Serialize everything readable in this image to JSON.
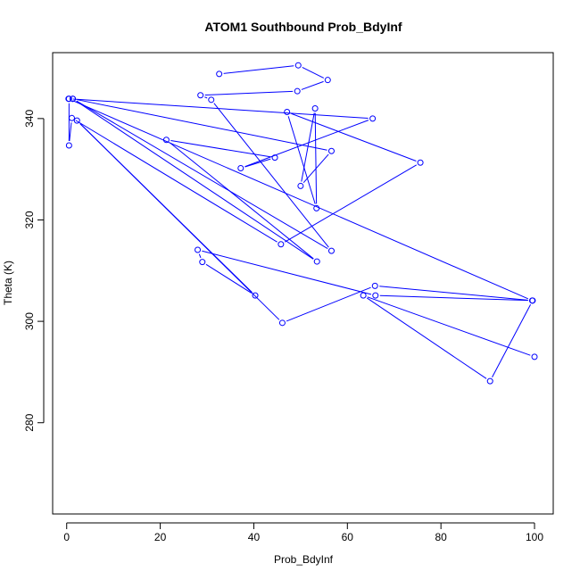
{
  "chart_data": {
    "type": "line",
    "title": "ATOM1 Southbound Prob_BdyInf",
    "xlabel": "Prob_BdyInf",
    "ylabel": "Theta (K)",
    "xlim": [
      -3,
      104
    ],
    "ylim": [
      262,
      353
    ],
    "x_ticks": [
      0,
      20,
      40,
      60,
      80,
      100
    ],
    "y_ticks": [
      280,
      300,
      320,
      340
    ],
    "line_color": "#0000ff",
    "marker": "open-circle",
    "grid": false,
    "legend": "none",
    "series": [
      {
        "x": [
          32.6,
          49.5,
          55.8,
          49.3,
          28.6,
          30.9,
          56.6,
          1.3,
          0.5,
          0.5,
          1.1,
          45.8,
          75.6,
          47.1,
          53.4,
          53.1,
          50.0,
          56.6,
          1.3,
          53.5,
          21.3,
          44.5,
          37.2,
          65.4,
          0.4,
          99.5,
          65.9,
          46.1,
          2.2,
          40.3,
          29.0,
          28.0,
          66.0,
          99.6,
          90.5,
          63.4,
          100.0
        ],
        "y": [
          348.8,
          350.5,
          347.6,
          345.4,
          344.6,
          343.7,
          313.9,
          343.9,
          343.9,
          334.7,
          340.1,
          315.2,
          331.3,
          341.3,
          322.3,
          342.0,
          326.7,
          333.6,
          343.9,
          311.8,
          335.8,
          332.3,
          330.2,
          340.0,
          343.9,
          304.1,
          307.0,
          299.7,
          339.6,
          305.1,
          311.7,
          314.1,
          305.1,
          304.1,
          288.2,
          305.1,
          293.0
        ]
      }
    ]
  }
}
